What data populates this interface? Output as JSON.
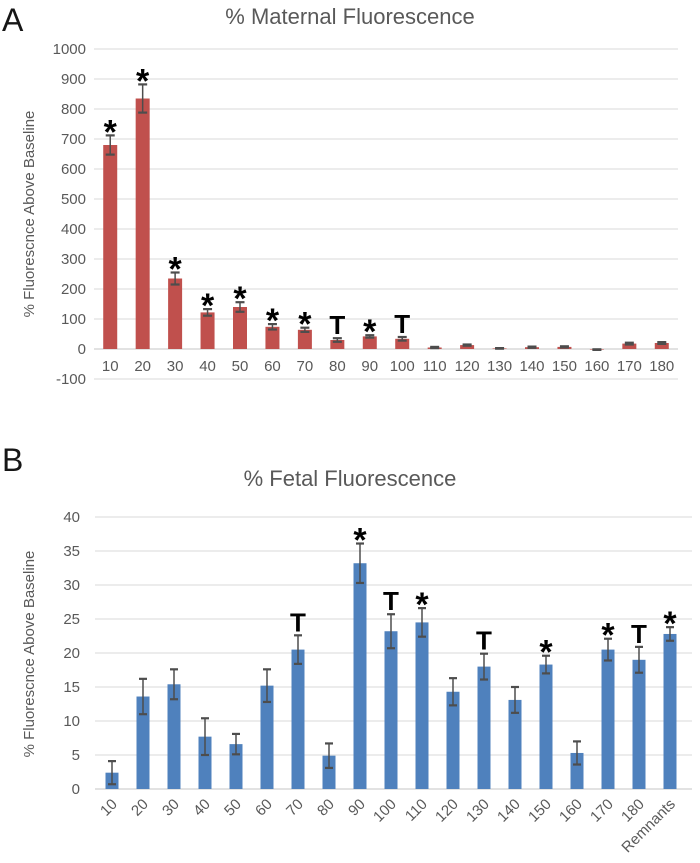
{
  "figure": {
    "panels": [
      {
        "letter": "A",
        "title": "% Maternal Fluorescence",
        "ylabel": "% Fluorescnce Above Baseline"
      },
      {
        "letter": "B",
        "title": "% Fetal Fluorescence",
        "ylabel": "% Fluorescnce Above Baseline"
      }
    ]
  },
  "chart_data": [
    {
      "type": "bar",
      "panel": "A",
      "title": "% Maternal Fluorescence",
      "xlabel": "",
      "ylabel": "% Fluorescnce Above Baseline",
      "categories": [
        "10",
        "20",
        "30",
        "40",
        "50",
        "60",
        "70",
        "80",
        "90",
        "100",
        "110",
        "120",
        "130",
        "140",
        "150",
        "160",
        "170",
        "180"
      ],
      "values": [
        680,
        835,
        235,
        122,
        140,
        74,
        64,
        30,
        42,
        34,
        5,
        13,
        2,
        6,
        7,
        -2,
        18,
        20
      ],
      "errors": [
        32,
        47,
        20,
        11,
        16,
        9,
        7,
        6,
        4,
        6,
        2,
        2,
        1,
        2,
        2,
        1,
        3,
        3
      ],
      "annotations": [
        "*",
        "*",
        "*",
        "*",
        "*",
        "*",
        "*",
        "T",
        "*",
        "T",
        "",
        "",
        "",
        "",
        "",
        "",
        "",
        ""
      ],
      "ylim": [
        -100,
        1000
      ],
      "ytick_step": 100,
      "bar_color": "#C0504D",
      "grid": true,
      "legend": null,
      "x_tick_rotation": 0
    },
    {
      "type": "bar",
      "panel": "B",
      "title": "% Fetal Fluorescence",
      "xlabel": "",
      "ylabel": "% Fluorescnce Above Baseline",
      "categories": [
        "10",
        "20",
        "30",
        "40",
        "50",
        "60",
        "70",
        "80",
        "90",
        "100",
        "110",
        "120",
        "130",
        "140",
        "150",
        "160",
        "170",
        "180",
        "Remnants"
      ],
      "values": [
        2.4,
        13.6,
        15.4,
        7.7,
        6.6,
        15.2,
        20.5,
        4.9,
        33.2,
        23.2,
        24.5,
        14.3,
        18.0,
        13.1,
        18.3,
        5.3,
        20.5,
        19.0,
        22.8
      ],
      "errors": [
        1.7,
        2.6,
        2.2,
        2.7,
        1.5,
        2.4,
        2.1,
        1.8,
        2.9,
        2.5,
        2.1,
        2.0,
        1.9,
        1.9,
        1.3,
        1.7,
        1.6,
        1.9,
        1.0
      ],
      "annotations": [
        "",
        "",
        "",
        "",
        "",
        "",
        "T",
        "",
        "*",
        "T",
        "*",
        "",
        "T",
        "",
        "*",
        "",
        "*",
        "T",
        "*"
      ],
      "ylim": [
        0,
        40
      ],
      "ytick_step": 5,
      "bar_color": "#4F81BD",
      "grid": true,
      "legend": null,
      "x_tick_rotation": -45
    }
  ],
  "colors": {
    "grid": "#D9D9D9",
    "axis_text": "#595959",
    "error_bar": "#4D4D4D",
    "annotation": "#000000",
    "bar_a": "#C0504D",
    "bar_b": "#4F81BD"
  }
}
